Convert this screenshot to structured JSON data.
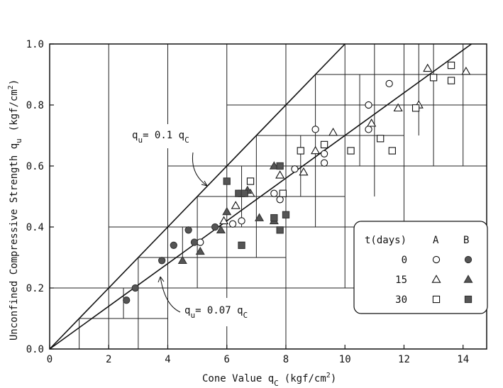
{
  "chart_data": {
    "type": "scatter",
    "title": "",
    "xlabel": {
      "main": "Cone Value q",
      "sub": "C",
      "unit": "(kgf/cm",
      "sup": "2",
      "close": ")"
    },
    "ylabel": {
      "main": "Unconfined Compressive Strength q",
      "sub": "u",
      "unit": "(kgf/cm",
      "sup": "2",
      "close": ")"
    },
    "xlim": [
      0,
      14.8
    ],
    "ylim": [
      0,
      1.0
    ],
    "xticks": [
      0,
      2,
      4,
      6,
      8,
      10,
      12,
      14
    ],
    "yticks": [
      0.0,
      0.2,
      0.4,
      0.6,
      0.8,
      1.0
    ],
    "xtick_labels": [
      "0",
      "2",
      "4",
      "6",
      "8",
      "10",
      "12",
      "14"
    ],
    "ytick_labels": [
      "0.0",
      "0.2",
      "0.4",
      "0.6",
      "0.8",
      "1.0"
    ],
    "lines": [
      {
        "slope": 0.1,
        "label_main": "q",
        "label_sub": "u",
        "label_eq": "= 0.1 q",
        "label_sub2": "C"
      },
      {
        "slope": 0.07,
        "label_main": "q",
        "label_sub": "u",
        "label_eq": "= 0.07 q",
        "label_sub2": "C"
      }
    ],
    "series": [
      {
        "name": "A 0",
        "marker": "circle",
        "filled": false,
        "points": [
          [
            5.1,
            0.35
          ],
          [
            6.2,
            0.41
          ],
          [
            6.5,
            0.42
          ],
          [
            7.6,
            0.51
          ],
          [
            7.8,
            0.49
          ],
          [
            8.3,
            0.59
          ],
          [
            9.0,
            0.72
          ],
          [
            9.3,
            0.64
          ],
          [
            9.3,
            0.61
          ],
          [
            10.8,
            0.8
          ],
          [
            10.8,
            0.72
          ],
          [
            11.5,
            0.87
          ]
        ]
      },
      {
        "name": "B 0",
        "marker": "circle",
        "filled": true,
        "points": [
          [
            2.6,
            0.16
          ],
          [
            2.9,
            0.2
          ],
          [
            3.8,
            0.29
          ],
          [
            4.2,
            0.34
          ],
          [
            4.7,
            0.39
          ],
          [
            4.9,
            0.35
          ],
          [
            5.6,
            0.4
          ]
        ]
      },
      {
        "name": "A 15",
        "marker": "triangle",
        "filled": false,
        "points": [
          [
            5.9,
            0.42
          ],
          [
            6.3,
            0.47
          ],
          [
            6.8,
            0.51
          ],
          [
            7.8,
            0.57
          ],
          [
            8.6,
            0.58
          ],
          [
            9.0,
            0.65
          ],
          [
            9.6,
            0.71
          ],
          [
            10.9,
            0.74
          ],
          [
            11.8,
            0.79
          ],
          [
            12.5,
            0.8
          ],
          [
            12.8,
            0.92
          ],
          [
            14.1,
            0.91
          ]
        ]
      },
      {
        "name": "B 15",
        "marker": "triangle",
        "filled": true,
        "points": [
          [
            4.5,
            0.29
          ],
          [
            5.1,
            0.32
          ],
          [
            5.8,
            0.39
          ],
          [
            6.0,
            0.45
          ],
          [
            6.7,
            0.52
          ],
          [
            7.1,
            0.43
          ],
          [
            7.6,
            0.42
          ],
          [
            7.6,
            0.6
          ]
        ]
      },
      {
        "name": "A 30",
        "marker": "square",
        "filled": false,
        "points": [
          [
            6.5,
            0.51
          ],
          [
            6.8,
            0.55
          ],
          [
            7.9,
            0.51
          ],
          [
            8.5,
            0.65
          ],
          [
            9.3,
            0.67
          ],
          [
            10.2,
            0.65
          ],
          [
            11.2,
            0.69
          ],
          [
            11.6,
            0.65
          ],
          [
            12.4,
            0.79
          ],
          [
            13.0,
            0.89
          ],
          [
            13.6,
            0.88
          ],
          [
            13.6,
            0.93
          ]
        ]
      },
      {
        "name": "B 30",
        "marker": "square",
        "filled": true,
        "points": [
          [
            6.0,
            0.55
          ],
          [
            6.4,
            0.51
          ],
          [
            6.6,
            0.51
          ],
          [
            6.5,
            0.34
          ],
          [
            7.6,
            0.43
          ],
          [
            7.8,
            0.39
          ],
          [
            7.8,
            0.6
          ],
          [
            8.0,
            0.44
          ]
        ]
      }
    ],
    "legend": {
      "placement": "lower-right",
      "header": [
        "t(days)",
        "A",
        "B"
      ],
      "rows": [
        "0",
        "15",
        "30"
      ]
    },
    "grid": true,
    "grid_style": "irregular blocks"
  }
}
